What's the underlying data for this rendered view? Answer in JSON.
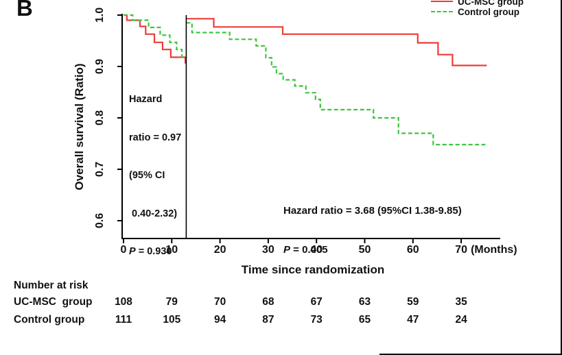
{
  "panel_label": "B",
  "colors": {
    "uc_msc": "#ed3c38",
    "control": "#3ec43e",
    "axis": "#000000"
  },
  "legend": {
    "items": [
      {
        "label": "UC-MSC group",
        "style": "solid"
      },
      {
        "label": "Control group",
        "style": "dashed"
      }
    ]
  },
  "y_axis": {
    "title": "Overall survival (Ratio)",
    "tick_labels": [
      "1.0",
      "0.9",
      "0.8",
      "0.7",
      "0.6"
    ]
  },
  "x_axis": {
    "title": "Time since randomization",
    "tick_labels": [
      "0",
      "10",
      "20",
      "30",
      "40",
      "50",
      "60",
      "70"
    ],
    "suffix": "(Months)"
  },
  "annotations": {
    "landmark": {
      "lines": [
        "Hazard",
        "ratio = 0.97",
        "(95% CI",
        " 0.40-2.32)"
      ],
      "p_label": "P",
      "p_value": " = 0.930"
    },
    "late": {
      "line1": "Hazard ratio = 3.68 (95%CI 1.38-9.85)",
      "p_label": "P",
      "p_value": " = 0.005"
    }
  },
  "risk_table": {
    "title": "Number at risk",
    "rows": [
      {
        "label": "UC-MSC  group",
        "values": [
          "108",
          "79",
          "70",
          "68",
          "67",
          "63",
          "59",
          "35"
        ]
      },
      {
        "label": "Control group",
        "values": [
          "111",
          "105",
          "94",
          "87",
          "73",
          "65",
          "47",
          "24"
        ]
      }
    ]
  },
  "chart_data": {
    "type": "line",
    "subtype": "kaplan-meier-landmark",
    "title": "",
    "xlabel": "Time since randomization",
    "ylabel": "Overall survival (Ratio)",
    "xlim": [
      0,
      78
    ],
    "ylim": [
      0.56,
      1.0
    ],
    "x_ticks": [
      0,
      10,
      20,
      30,
      40,
      50,
      60,
      70
    ],
    "y_ticks": [
      1.0,
      0.9,
      0.8,
      0.7,
      0.6
    ],
    "grid": false,
    "legend_position": "top-right",
    "landmark_month": 13,
    "hazard_ratios": [
      {
        "interval_months": "0-13",
        "hr": 0.97,
        "ci95": "0.40-2.32",
        "p": 0.93
      },
      {
        "interval_months": "13+",
        "hr": 3.68,
        "ci95": "1.38-9.85",
        "p": 0.005
      }
    ],
    "series": [
      {
        "name": "UC-MSC group",
        "color": "#ed3c38",
        "line_style": "solid",
        "segments": [
          {
            "steps": [
              [
                0,
                1.0
              ],
              [
                0.7,
                0.99
              ],
              [
                3.4,
                0.978
              ],
              [
                4.6,
                0.963
              ],
              [
                6.4,
                0.947
              ],
              [
                8.1,
                0.933
              ],
              [
                9.8,
                0.918
              ],
              [
                12.8,
                0.907
              ]
            ],
            "end": 13
          },
          {
            "steps": [
              [
                13,
                0.993
              ],
              [
                18.7,
                0.977
              ],
              [
                33,
                0.963
              ],
              [
                61,
                0.946
              ],
              [
                65.2,
                0.923
              ],
              [
                68.2,
                0.902
              ]
            ],
            "end": 75.3
          }
        ]
      },
      {
        "name": "Control group",
        "color": "#3ec43e",
        "line_style": "dashed",
        "segments": [
          {
            "steps": [
              [
                0,
                1.0
              ],
              [
                1.9,
                0.99
              ],
              [
                5.2,
                0.976
              ],
              [
                7.6,
                0.961
              ],
              [
                9.6,
                0.947
              ],
              [
                11.0,
                0.933
              ],
              [
                12.1,
                0.918
              ]
            ],
            "end": 13
          },
          {
            "steps": [
              [
                13,
                0.985
              ],
              [
                14.2,
                0.966
              ],
              [
                22,
                0.953
              ],
              [
                27.5,
                0.94
              ],
              [
                29.5,
                0.917
              ],
              [
                30.7,
                0.899
              ],
              [
                31.7,
                0.886
              ],
              [
                33.1,
                0.874
              ],
              [
                35.5,
                0.862
              ],
              [
                37.8,
                0.849
              ],
              [
                39.8,
                0.836
              ],
              [
                40.8,
                0.816
              ],
              [
                51.8,
                0.8
              ],
              [
                57.0,
                0.77
              ],
              [
                64.2,
                0.748
              ]
            ],
            "end": 75.0
          }
        ]
      }
    ],
    "number_at_risk": {
      "times": [
        0,
        10,
        20,
        30,
        40,
        50,
        60,
        70
      ],
      "UC-MSC group": [
        108,
        79,
        70,
        68,
        67,
        63,
        59,
        35
      ],
      "Control group": [
        111,
        105,
        94,
        87,
        73,
        65,
        47,
        24
      ]
    }
  }
}
